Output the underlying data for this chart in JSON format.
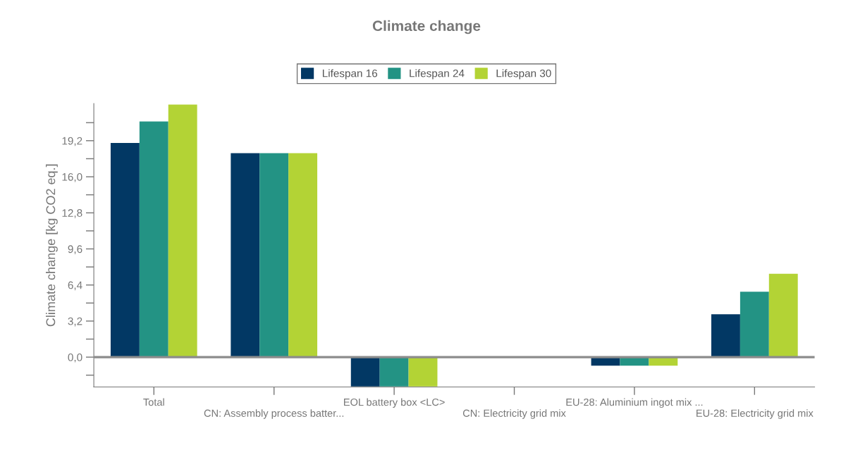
{
  "chart_data": {
    "type": "bar",
    "title": "Climate change",
    "ylabel": "Climate change [kg CO2 eq.]",
    "categories": [
      "Total",
      "CN: Assembly process batter...",
      "EOL battery box <LC>",
      "CN: Electricity grid mix",
      "EU-28: Aluminium ingot mix ...",
      "EU-28: Electricity grid mix"
    ],
    "series": [
      {
        "name": "Lifespan 16",
        "color": "#023864",
        "values": [
          19.0,
          18.1,
          -2.6,
          null,
          -0.75,
          3.8
        ]
      },
      {
        "name": "Lifespan 24",
        "color": "#239384",
        "values": [
          20.9,
          18.1,
          -2.6,
          null,
          -0.75,
          5.8
        ]
      },
      {
        "name": "Lifespan 30",
        "color": "#b3d335",
        "values": [
          22.4,
          18.1,
          -2.6,
          null,
          -0.75,
          7.4
        ]
      }
    ],
    "ylim": [
      -2.65,
      22.5
    ],
    "yticks": [
      {
        "value": -1.6,
        "label": null
      },
      {
        "value": 0,
        "label": "0,0"
      },
      {
        "value": 1.6,
        "label": null
      },
      {
        "value": 3.2,
        "label": "3,2"
      },
      {
        "value": 4.8,
        "label": null
      },
      {
        "value": 6.4,
        "label": "6,4"
      },
      {
        "value": 8.0,
        "label": null
      },
      {
        "value": 9.6,
        "label": "9,6"
      },
      {
        "value": 11.2,
        "label": null
      },
      {
        "value": 12.8,
        "label": "12,8"
      },
      {
        "value": 14.4,
        "label": null
      },
      {
        "value": 16.0,
        "label": "16,0"
      },
      {
        "value": 17.6,
        "label": null
      },
      {
        "value": 19.2,
        "label": "19,2"
      },
      {
        "value": 20.8,
        "label": null
      }
    ],
    "ref_lines": [
      {
        "axis": "y",
        "value": 0,
        "color": "#8c8c8c"
      }
    ],
    "grid": false,
    "legend": "top"
  }
}
